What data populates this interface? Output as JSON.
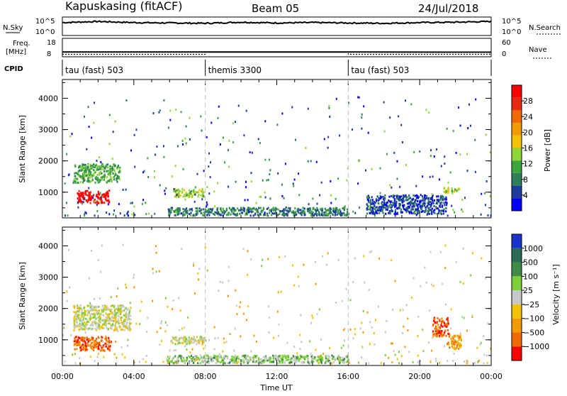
{
  "header": {
    "site": "Kapuskasing (fitACF)",
    "beam": "Beam 05",
    "date": "24/Jul/2018"
  },
  "nsky_panel": {
    "left_label": "N.Sky",
    "right_label": "N.Search",
    "left_ticks": [
      "10^5",
      "10^0"
    ],
    "right_ticks": [
      "10^5",
      "10^0"
    ]
  },
  "freq_panel": {
    "left_label_1": "Freq.",
    "left_label_2": "[MHz]",
    "right_label": "Nave",
    "left_ticks": [
      "18",
      "8"
    ],
    "right_ticks": [
      "60",
      "0"
    ]
  },
  "cpid": {
    "label": "CPID",
    "segments": [
      {
        "name": "tau (fast) 503",
        "start_hour": 0,
        "end_hour": 8
      },
      {
        "name": "themis 3300",
        "start_hour": 8,
        "end_hour": 16
      },
      {
        "name": "tau (fast) 503",
        "start_hour": 16,
        "end_hour": 24
      }
    ]
  },
  "x_axis": {
    "label": "Time UT",
    "ticks": [
      "00:00",
      "04:00",
      "08:00",
      "12:00",
      "16:00",
      "20:00",
      "00:00"
    ]
  },
  "power_panel": {
    "ylabel": "Slant Range [km]",
    "yticks": [
      "1000",
      "2000",
      "3000",
      "4000"
    ],
    "colorbar_label": "Power [dB]",
    "colorbar_ticks": [
      "4",
      "8",
      "12",
      "16",
      "20",
      "24",
      "28"
    ],
    "colors": [
      "#0000ff",
      "#1e3c9c",
      "#2f7f5a",
      "#3ca63c",
      "#8fd63a",
      "#f2c200",
      "#f29b00",
      "#ef6a00",
      "#e82a10",
      "#ff0000"
    ]
  },
  "velocity_panel": {
    "ylabel": "Slant Range [km]",
    "yticks": [
      "1000",
      "2000",
      "3000",
      "4000"
    ],
    "colorbar_label": "Velocity [m s⁻¹]",
    "colorbar_ticks": [
      "1000",
      "500",
      "100",
      "25",
      "−25",
      "−100",
      "−500",
      "−1000"
    ],
    "colors": [
      "#1a33cc",
      "#2f6b55",
      "#3f8a45",
      "#7ed03a",
      "#c8c8c8",
      "#f2c200",
      "#f29b00",
      "#ef6a00",
      "#ff0000"
    ]
  },
  "chart_data": {
    "type": "heatmap",
    "title": "Kapuskasing (fitACF)",
    "subtitle": "Beam 05",
    "xlabel": "Time UT",
    "ylabel": "Slant Range [km]",
    "xlim": [
      0,
      24
    ],
    "ylim": [
      180,
      4600
    ],
    "x_tick_hours": [
      0,
      4,
      8,
      12,
      16,
      20,
      24
    ],
    "y_tick_values": [
      1000,
      2000,
      3000,
      4000
    ],
    "mode_boundaries_hours": [
      8,
      16
    ],
    "nsky_series": {
      "name": "N.Sky",
      "x": [
        0,
        2,
        4,
        6,
        8,
        10,
        12,
        14,
        16,
        18,
        20,
        22,
        24
      ],
      "y": [
        3.5,
        3.8,
        3.5,
        3.4,
        3.3,
        3.6,
        3.4,
        3.5,
        3.4,
        3.3,
        3.5,
        3.6,
        3.8
      ]
    },
    "freq_series": {
      "name": "Freq.",
      "x": [
        0,
        8,
        16,
        22,
        24
      ],
      "y": [
        10.6,
        10.6,
        10.6,
        10.5,
        10.5
      ]
    },
    "nave_series": {
      "name": "Nave",
      "x": [
        0,
        8,
        8,
        16,
        16,
        24
      ],
      "y": [
        8,
        8,
        15,
        15,
        8,
        8
      ]
    },
    "power_scatter_regions": [
      {
        "t0": 0.8,
        "t1": 2.6,
        "r0": 650,
        "r1": 1050,
        "level": 9
      },
      {
        "t0": 0.6,
        "t1": 3.2,
        "r0": 1300,
        "r1": 1900,
        "level": 3
      },
      {
        "t0": 6.2,
        "t1": 7.9,
        "r0": 850,
        "r1": 1100,
        "level": 4
      },
      {
        "t0": 5.8,
        "t1": 16.0,
        "r0": 250,
        "r1": 500,
        "level": 2
      },
      {
        "t0": 17.0,
        "t1": 21.5,
        "r0": 300,
        "r1": 900,
        "level": 1
      },
      {
        "t0": 21.3,
        "t1": 22.2,
        "r0": 950,
        "r1": 1150,
        "level": 4
      }
    ],
    "velocity_scatter_regions": [
      {
        "t0": 0.6,
        "t1": 2.7,
        "r0": 650,
        "r1": 1100,
        "level": 7
      },
      {
        "t0": 0.6,
        "t1": 3.8,
        "r0": 1300,
        "r1": 2100,
        "level": 4
      },
      {
        "t0": 6.0,
        "t1": 8.0,
        "r0": 850,
        "r1": 1100,
        "level": 4
      },
      {
        "t0": 5.8,
        "t1": 16.0,
        "r0": 250,
        "r1": 500,
        "level": 3
      },
      {
        "t0": 20.7,
        "t1": 21.6,
        "r0": 1100,
        "r1": 1700,
        "level": 7
      },
      {
        "t0": 21.5,
        "t1": 22.3,
        "r0": 700,
        "r1": 1150,
        "level": 6
      }
    ]
  }
}
